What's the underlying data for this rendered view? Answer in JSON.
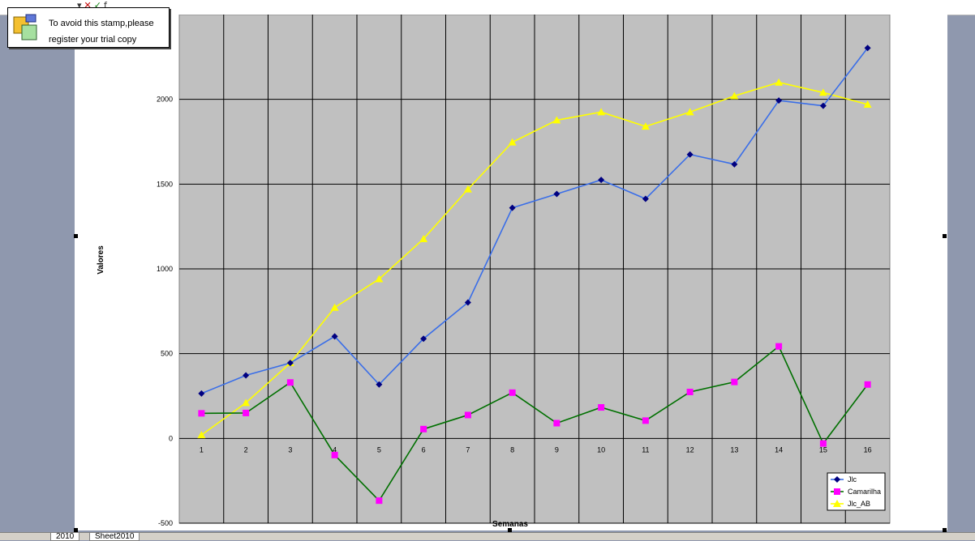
{
  "stamp": {
    "line1": "To avoid this stamp,please",
    "line2": "register your trial copy"
  },
  "sheet_tabs": [
    "2010",
    "Sheet2010"
  ],
  "colors": {
    "plot_bg": "#c0c0c0",
    "grid": "#000000",
    "Jlc": "#3a6ee8",
    "Jlc_marker": "#000080",
    "Camarilha": "#007000",
    "Camarilha_marker": "#ff00ff",
    "Jlc_AB": "#ffff00"
  },
  "chart_data": {
    "type": "line",
    "xlabel": "Semanas",
    "ylabel": "Valores",
    "categories": [
      "1",
      "2",
      "3",
      "4",
      "5",
      "6",
      "7",
      "8",
      "9",
      "10",
      "11",
      "12",
      "13",
      "14",
      "15",
      "16"
    ],
    "ylim": [
      -500,
      2500
    ],
    "yticks": [
      -500,
      0,
      500,
      1000,
      1500,
      2000
    ],
    "grid": true,
    "legend_position": "bottom-right",
    "series": [
      {
        "name": "Jlc",
        "marker": "diamond",
        "values": [
          265,
          372,
          445,
          602,
          318,
          588,
          802,
          1360,
          1442,
          1525,
          1413,
          1675,
          1617,
          1993,
          1962,
          2303
        ]
      },
      {
        "name": "Camarilha",
        "marker": "square",
        "values": [
          148,
          150,
          330,
          -98,
          -367,
          55,
          138,
          270,
          90,
          183,
          105,
          274,
          333,
          543,
          -30,
          318
        ]
      },
      {
        "name": "Jlc_AB",
        "marker": "triangle",
        "values": [
          20,
          210,
          445,
          772,
          940,
          1177,
          1470,
          1747,
          1877,
          1925,
          1840,
          1925,
          2020,
          2100,
          2040,
          1970
        ]
      }
    ]
  }
}
